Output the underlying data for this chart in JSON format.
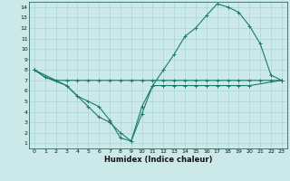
{
  "bg_color": "#cce9ea",
  "grid_color": "#aad4d6",
  "line_color": "#1a7a6e",
  "xlabel": "Humidex (Indice chaleur)",
  "xlim": [
    -0.5,
    23.5
  ],
  "ylim": [
    0.5,
    14.5
  ],
  "xticks": [
    0,
    1,
    2,
    3,
    4,
    5,
    6,
    7,
    8,
    9,
    10,
    11,
    12,
    13,
    14,
    15,
    16,
    17,
    18,
    19,
    20,
    21,
    22,
    23
  ],
  "yticks": [
    1,
    2,
    3,
    4,
    5,
    6,
    7,
    8,
    9,
    10,
    11,
    12,
    13,
    14
  ],
  "line1_x": [
    0,
    1,
    2,
    3,
    4,
    5,
    6,
    7,
    8,
    9,
    10,
    11,
    12,
    13,
    14,
    15,
    16,
    17,
    18,
    19,
    20,
    21,
    22,
    23
  ],
  "line1_y": [
    8.0,
    7.3,
    7.0,
    7.0,
    7.0,
    7.0,
    7.0,
    7.0,
    7.0,
    7.0,
    7.0,
    7.0,
    7.0,
    7.0,
    7.0,
    7.0,
    7.0,
    7.0,
    7.0,
    7.0,
    7.0,
    7.0,
    7.0,
    7.0
  ],
  "line2_x": [
    0,
    1,
    3,
    4,
    5,
    6,
    7,
    8,
    9,
    10,
    11,
    12,
    13,
    14,
    15,
    16,
    17,
    18,
    19,
    20,
    23
  ],
  "line2_y": [
    8.0,
    7.3,
    6.5,
    5.5,
    5.0,
    4.5,
    3.2,
    1.5,
    1.2,
    3.8,
    6.5,
    6.5,
    6.5,
    6.5,
    6.5,
    6.5,
    6.5,
    6.5,
    6.5,
    6.5,
    7.0
  ],
  "line3_x": [
    0,
    3,
    4,
    5,
    6,
    7,
    8,
    9,
    10,
    11,
    12,
    13,
    14,
    15,
    16,
    17,
    18,
    19,
    20,
    21,
    22,
    23
  ],
  "line3_y": [
    8.0,
    6.5,
    5.5,
    4.5,
    3.5,
    3.0,
    2.0,
    1.2,
    4.5,
    6.5,
    8.0,
    9.5,
    11.2,
    12.0,
    13.2,
    14.3,
    14.0,
    13.5,
    12.2,
    10.5,
    7.5,
    7.0
  ]
}
